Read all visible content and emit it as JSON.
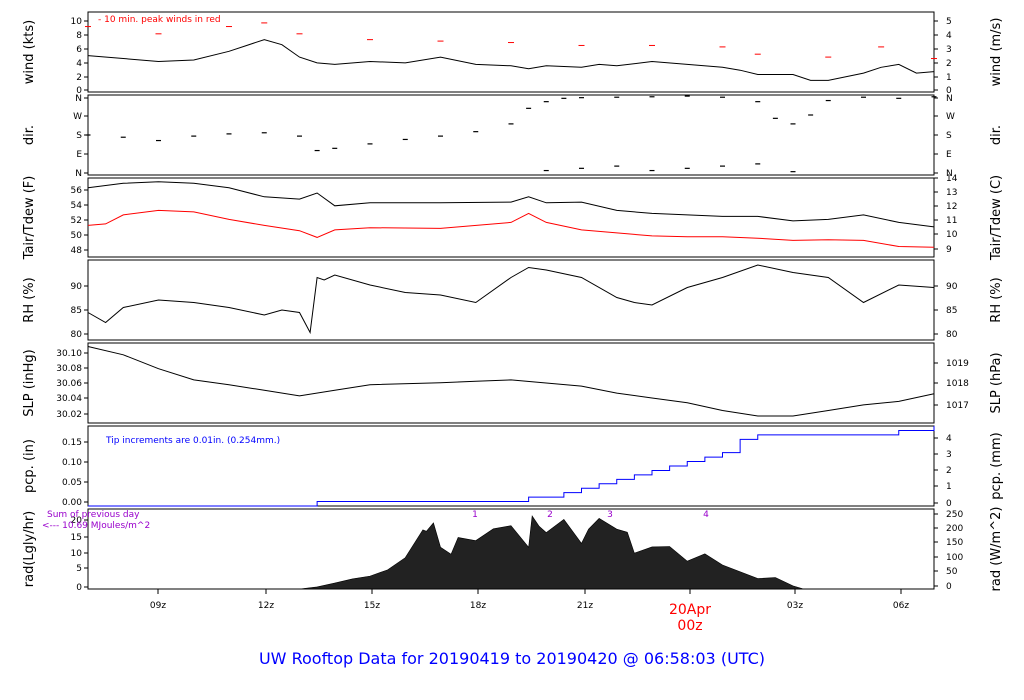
{
  "footer_title": "UW Rooftop Data for 20190419  to  20190420 @ 06:58:03  (UTC)",
  "colors": {
    "black": "#000000",
    "red": "#ff0000",
    "blue": "#0000ff",
    "purple": "#9900cc"
  },
  "chart_data": [
    {
      "type": "line",
      "panel": "wind",
      "ylabel_left": "wind (kts)",
      "ylabel_right": "wind (m/s)",
      "yticks_left": [
        "0",
        "2",
        "4",
        "6",
        "8",
        "10"
      ],
      "yticks_right": [
        "0",
        "1",
        "2",
        "3",
        "4",
        "5"
      ],
      "ylim": [
        0,
        11
      ],
      "annotation": "10 min. peak winds in red",
      "series": [
        {
          "color": "black",
          "x": [
            7,
            8,
            9,
            10,
            11,
            11.5,
            12,
            12.5,
            13,
            13.5,
            14,
            15,
            16,
            17,
            18,
            19,
            19.5,
            20,
            21,
            21.5,
            22,
            23,
            24,
            25,
            25.5,
            26,
            27,
            27.5,
            28,
            29,
            29.5,
            30,
            30.5,
            31
          ],
          "y": [
            5,
            4.6,
            4.2,
            4.4,
            5.6,
            6.4,
            7.2,
            6.5,
            4.8,
            4,
            3.8,
            4.2,
            4,
            4.8,
            3.8,
            3.6,
            3.2,
            3.6,
            3.4,
            3.8,
            3.6,
            4.2,
            3.8,
            3.4,
            3,
            2.4,
            2.4,
            1.6,
            1.6,
            2.6,
            3.4,
            3.8,
            2.6,
            2.8
          ]
        },
        {
          "color": "red",
          "x": [
            7,
            9,
            11,
            12,
            13,
            15,
            17,
            19,
            21,
            23,
            25,
            26,
            28,
            29.5,
            31
          ],
          "y": [
            9,
            8,
            9,
            9.5,
            8,
            7.2,
            7,
            6.8,
            6.4,
            6.4,
            6.2,
            5.2,
            4.8,
            6.2,
            4.6
          ]
        }
      ]
    },
    {
      "type": "scatter",
      "panel": "dir",
      "ylabel_left": "dir.",
      "ylabel_right": "dir.",
      "yticks_left": [
        "N",
        "E",
        "S",
        "W",
        "N"
      ],
      "yticks_right": [
        "N",
        "E",
        "S",
        "W",
        "N"
      ],
      "ylim": [
        0,
        360
      ],
      "series": [
        {
          "color": "black",
          "x": [
            7,
            8,
            9,
            10,
            11,
            12,
            13,
            13.5,
            14,
            15,
            16,
            17,
            18,
            19,
            19.5,
            20,
            20.5,
            21,
            22,
            23,
            24,
            25,
            26,
            26.5,
            27,
            27.5,
            28,
            29,
            30,
            31
          ],
          "y": [
            180,
            170,
            155,
            175,
            185,
            190,
            175,
            110,
            120,
            140,
            160,
            175,
            195,
            230,
            300,
            330,
            345,
            348,
            350,
            352,
            355,
            350,
            330,
            255,
            230,
            270,
            335,
            350,
            345,
            352
          ]
        },
        {
          "color": "black",
          "x": [
            20,
            21,
            22,
            23,
            24,
            25,
            26,
            27
          ],
          "y": [
            20,
            30,
            40,
            20,
            30,
            40,
            50,
            15
          ]
        }
      ]
    },
    {
      "type": "line",
      "panel": "temp",
      "ylabel_left": "Tair/Tdew (F)",
      "ylabel_right": "Tair/Tdew (C)",
      "yticks_left": [
        "48",
        "50",
        "52",
        "54",
        "56"
      ],
      "yticks_right": [
        "9",
        "10",
        "11",
        "12",
        "13",
        "14"
      ],
      "ylim": [
        47,
        57.5
      ],
      "series": [
        {
          "name": "Tair",
          "color": "black",
          "x": [
            7,
            8,
            9,
            10,
            11,
            12,
            13,
            13.5,
            14,
            15,
            17,
            19,
            19.5,
            20,
            21,
            22,
            23,
            24,
            25,
            26,
            27,
            28,
            29,
            30,
            31
          ],
          "y": [
            56.2,
            56.8,
            57,
            56.8,
            56.2,
            55,
            54.7,
            55.5,
            53.8,
            54.2,
            54.2,
            54.3,
            55,
            54.2,
            54.3,
            53.2,
            52.8,
            52.6,
            52.4,
            52.4,
            51.8,
            52,
            52.6,
            51.6,
            51
          ]
        },
        {
          "name": "Tdew",
          "color": "red",
          "x": [
            7,
            7.5,
            8,
            9,
            10,
            11,
            12,
            13,
            13.5,
            14,
            15,
            17,
            19,
            19.5,
            20,
            21,
            22,
            23,
            24,
            25,
            26,
            27,
            28,
            29,
            30,
            31
          ],
          "y": [
            51.2,
            51.4,
            52.6,
            53.2,
            53,
            52,
            51.2,
            50.5,
            49.6,
            50.6,
            50.9,
            50.8,
            51.6,
            52.8,
            51.6,
            50.6,
            50.2,
            49.8,
            49.7,
            49.7,
            49.5,
            49.2,
            49.3,
            49.2,
            48.4,
            48.3
          ]
        }
      ]
    },
    {
      "type": "line",
      "panel": "rh",
      "ylabel_left": "RH (%)",
      "ylabel_right": "RH (%)",
      "yticks_left": [
        "80",
        "85",
        "90"
      ],
      "yticks_right": [
        "80",
        "85",
        "90"
      ],
      "ylim": [
        78.5,
        94.5
      ],
      "series": [
        {
          "color": "black",
          "x": [
            7,
            7.5,
            8,
            9,
            10,
            11,
            12,
            12.5,
            13,
            13.3,
            13.5,
            13.7,
            14,
            15,
            16,
            17,
            18,
            19,
            19.5,
            20,
            21,
            22,
            22.5,
            23,
            24,
            25,
            26,
            27,
            28,
            29,
            30,
            31
          ],
          "y": [
            84,
            82,
            85,
            86.5,
            86,
            85,
            83.5,
            84.5,
            84,
            80,
            91,
            90.5,
            91.5,
            89.5,
            88,
            87.5,
            86,
            91,
            93,
            92.5,
            91,
            87,
            86,
            85.5,
            89,
            91,
            93.5,
            92,
            91,
            86,
            89.5,
            89
          ]
        }
      ]
    },
    {
      "type": "line",
      "panel": "slp",
      "ylabel_left": "SLP (inHg)",
      "ylabel_right": "SLP (hPa)",
      "yticks_left": [
        "30.02",
        "30.04",
        "30.06",
        "30.08",
        "30.10"
      ],
      "yticks_right": [
        "1017",
        "1018",
        "1019"
      ],
      "ylim": [
        30.0,
        30.115
      ],
      "series": [
        {
          "color": "black",
          "x": [
            7,
            8,
            9,
            10,
            11,
            12,
            13,
            14,
            15,
            17,
            18,
            19,
            21,
            22,
            23,
            24,
            25,
            26,
            27,
            28,
            29,
            30,
            31
          ],
          "y": [
            30.11,
            30.098,
            30.078,
            30.062,
            30.055,
            30.047,
            30.039,
            30.047,
            30.055,
            30.058,
            30.06,
            30.062,
            30.053,
            30.043,
            30.036,
            30.029,
            30.018,
            30.01,
            30.01,
            30.018,
            30.026,
            30.031,
            30.042
          ]
        }
      ]
    },
    {
      "type": "line",
      "panel": "pcp",
      "ylabel_left": "pcp. (in)",
      "ylabel_right": "pcp. (mm)",
      "yticks_left": [
        "0.00",
        "0.05",
        "0.10",
        "0.15"
      ],
      "yticks_right": [
        "0",
        "1",
        "2",
        "3",
        "4"
      ],
      "ylim": [
        0,
        0.18
      ],
      "annotation": "Tip increments are 0.01in. (0.254mm.)",
      "series": [
        {
          "color": "blue",
          "x": [
            7,
            13,
            13.5,
            14,
            19.3,
            19.5,
            20.5,
            21,
            21.5,
            22,
            22.5,
            23,
            23.5,
            24,
            24.5,
            25,
            25.5,
            26,
            29.5,
            30,
            31
          ],
          "y": [
            0,
            0,
            0.01,
            0.01,
            0.01,
            0.02,
            0.03,
            0.04,
            0.05,
            0.06,
            0.07,
            0.08,
            0.09,
            0.1,
            0.11,
            0.12,
            0.15,
            0.16,
            0.16,
            0.17,
            0.18
          ]
        }
      ]
    },
    {
      "type": "area",
      "panel": "rad",
      "ylabel_left": "rad(Lgly/hr)",
      "ylabel_right": "rad (W/m^2)",
      "yticks_left": [
        "0",
        "5",
        "10",
        "15",
        "20"
      ],
      "yticks_right": [
        "0",
        "50",
        "100",
        "150",
        "200",
        "250"
      ],
      "ylim": [
        0,
        23
      ],
      "annotation_line1": "Sum of previous day",
      "annotation_line2": "<--- 10.69 MJoules/m^2",
      "hour_labels": [
        "1",
        "2",
        "3",
        "4"
      ],
      "series": [
        {
          "color": "black",
          "x": [
            13,
            13.5,
            14,
            14.5,
            15,
            15.5,
            16,
            16.5,
            16.6,
            16.8,
            17,
            17.3,
            17.5,
            18,
            18.5,
            19,
            19.5,
            19.6,
            19.8,
            20,
            20.5,
            21,
            21.2,
            21.5,
            22,
            22.3,
            22.5,
            23,
            23.5,
            24,
            24.5,
            25,
            26,
            26.5,
            27,
            27.3
          ],
          "y": [
            0,
            0.6,
            1.7,
            2.9,
            3.7,
            5.5,
            9,
            17,
            16.6,
            19,
            12,
            10,
            14.8,
            13.9,
            17.3,
            18.2,
            12,
            21,
            18,
            16.2,
            20,
            13.1,
            17.2,
            20.3,
            17.2,
            16.3,
            10.3,
            12.1,
            12.2,
            8,
            10.1,
            6.9,
            3,
            3.3,
            0.9,
            0
          ]
        }
      ]
    }
  ],
  "x_axis": {
    "tick_labels": [
      "09z",
      "12z",
      "15z",
      "18z",
      "21z",
      "00z",
      "03z",
      "06z"
    ],
    "date_label": "20Apr",
    "date_sublabel": "00z",
    "xlim": [
      7,
      31
    ]
  }
}
